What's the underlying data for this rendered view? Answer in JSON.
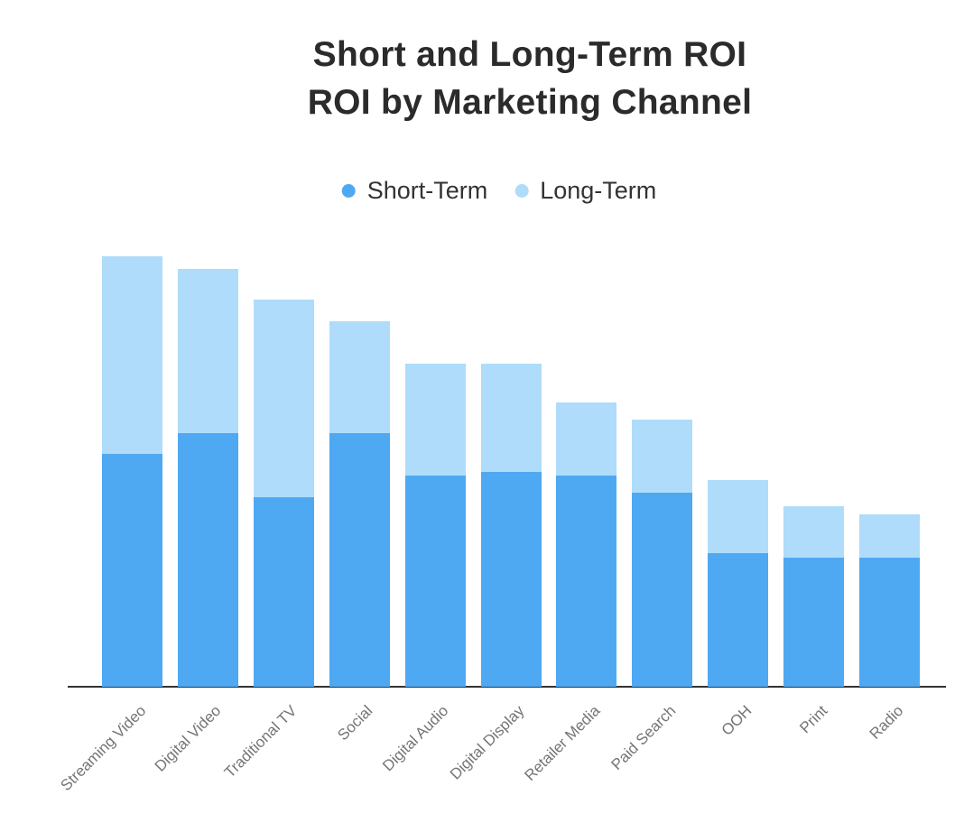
{
  "title": {
    "line1": "Short and Long-Term ROI",
    "line2": "ROI by Marketing Channel"
  },
  "legend": {
    "items": [
      {
        "label": "Short-Term",
        "color": "#4FA8F2"
      },
      {
        "label": "Long-Term",
        "color": "#AEDCFA"
      }
    ]
  },
  "chart_data": {
    "type": "bar",
    "stacked": true,
    "title": "Short and Long-Term ROI",
    "subtitle": "ROI by Marketing Channel",
    "categories": [
      "Streaming Video",
      "Digital Video",
      "Traditional TV",
      "Social",
      "Digital Audio",
      "Digital Display",
      "Retailer Media",
      "Paid Search",
      "OOH",
      "Print",
      "Radio"
    ],
    "series": [
      {
        "name": "Short-Term",
        "color": "#4FA8F2",
        "values": [
          54,
          59,
          44,
          59,
          49,
          50,
          49,
          45,
          31,
          30,
          30
        ]
      },
      {
        "name": "Long-Term",
        "color": "#AEDCFA",
        "values": [
          46,
          38,
          46,
          26,
          26,
          25,
          17,
          17,
          17,
          12,
          10
        ]
      }
    ],
    "totals": [
      100,
      97,
      90,
      85,
      75,
      75,
      66,
      62,
      48,
      42,
      40
    ],
    "xlabel": "",
    "ylabel": "",
    "ylim": [
      0,
      105
    ],
    "y_axis_visible": false,
    "gridlines": false,
    "legend_position": "top center",
    "x_tick_label_rotation_deg": -45,
    "x_tick_label_color": "#757575",
    "axis_line_color": "#333333",
    "background_color": "#ffffff",
    "values_unit": "relative ROI index (no y-axis shown; estimated from bar heights, max total = 100)"
  }
}
